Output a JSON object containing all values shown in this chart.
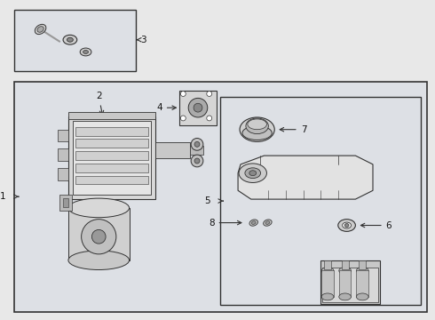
{
  "bg_color": "#e8e8e8",
  "white": "#ffffff",
  "panel_bg": "#dde0e5",
  "line_color": "#333333",
  "text_color": "#111111",
  "gray1": "#cccccc",
  "gray2": "#aaaaaa",
  "gray3": "#888888",
  "gray4": "#bbbbbb",
  "gray5": "#d8d8d8"
}
